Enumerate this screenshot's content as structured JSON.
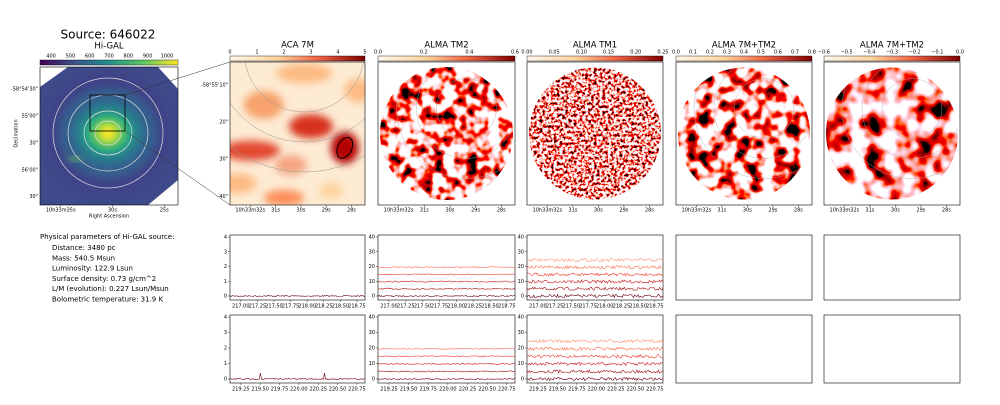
{
  "title": "Source: 646022",
  "maps": [
    {
      "title": "Hi-GAL",
      "colorbar_ticks": [
        "400",
        "500",
        "600",
        "700",
        "800",
        "900",
        "1000"
      ],
      "yticks": [
        "-58°54'30\"",
        "55'00\"",
        "30\"",
        "56'00\"",
        "30\""
      ],
      "xticks": [
        "10h33m35s",
        "30s",
        "25s"
      ],
      "xlabel": "Right Ascension",
      "ylabel": "Declination"
    },
    {
      "title": "ACA 7M",
      "colorbar_ticks": [
        "0",
        "1",
        "2",
        "3",
        "4",
        "5"
      ],
      "yticks": [
        "-58°55'10\"",
        "20\"",
        "30\"",
        "40\""
      ],
      "xticks": [
        "10h33m32s",
        "31s",
        "30s",
        "29s",
        "28s"
      ]
    },
    {
      "title": "ALMA TM2",
      "colorbar_ticks": [
        "0.0",
        "0.2",
        "0.4",
        "0.6"
      ],
      "xticks": [
        "10h33m32s",
        "31s",
        "30s",
        "29s",
        "28s"
      ]
    },
    {
      "title": "ALMA TM1",
      "colorbar_ticks": [
        "0.00",
        "0.05",
        "0.10",
        "0.15",
        "0.20",
        "0.25"
      ],
      "xticks": [
        "10h33m32s",
        "31s",
        "30s",
        "29s",
        "28s"
      ]
    },
    {
      "title": "ALMA 7M+TM2",
      "colorbar_ticks": [
        "0.0",
        "0.1",
        "0.2",
        "0.3",
        "0.4",
        "0.5",
        "0.6",
        "0.7",
        "0.8"
      ],
      "xticks": [
        "10h33m32s",
        "31s",
        "30s",
        "29s",
        "28s"
      ]
    },
    {
      "title": "ALMA 7M+TM2",
      "colorbar_ticks": [
        "−0.6",
        "−0.5",
        "−0.4",
        "−0.3",
        "−0.2",
        "−0.1",
        "0.0"
      ],
      "xticks": [
        "10h33m32s",
        "31s",
        "30s",
        "29s",
        "28s"
      ]
    }
  ],
  "params": {
    "heading": "Physical parameters of Hi-GAL source:",
    "lines": [
      "Distance: 3480 pc",
      "Mass: 540.5 Msun",
      "Luminosity: 122.9 Lsun",
      "Surface density: 0.73 g/cm^2",
      "L/M (evolution): 0.227 Lsun/Msun",
      "Bolometric temperature: 31.9 K"
    ]
  },
  "spectra": [
    {
      "xticks": [
        "217.00",
        "217.25",
        "217.50",
        "217.75",
        "218.00",
        "218.25",
        "218.50",
        "218.75"
      ],
      "panels": [
        {
          "yticks": [
            0,
            1,
            2,
            3,
            4
          ]
        },
        {
          "yticks": [
            0,
            10,
            20,
            30,
            40
          ]
        },
        {
          "yticks": [
            0,
            10,
            20,
            30,
            40
          ]
        }
      ]
    },
    {
      "xticks": [
        "219.25",
        "219.50",
        "219.75",
        "220.00",
        "220.25",
        "220.50",
        "220.75"
      ],
      "panels": [
        {
          "yticks": [
            0,
            1,
            2,
            3,
            4
          ]
        },
        {
          "yticks": [
            0,
            10,
            20,
            30,
            40
          ]
        },
        {
          "yticks": [
            0,
            10,
            20,
            30,
            40
          ]
        }
      ]
    }
  ]
}
